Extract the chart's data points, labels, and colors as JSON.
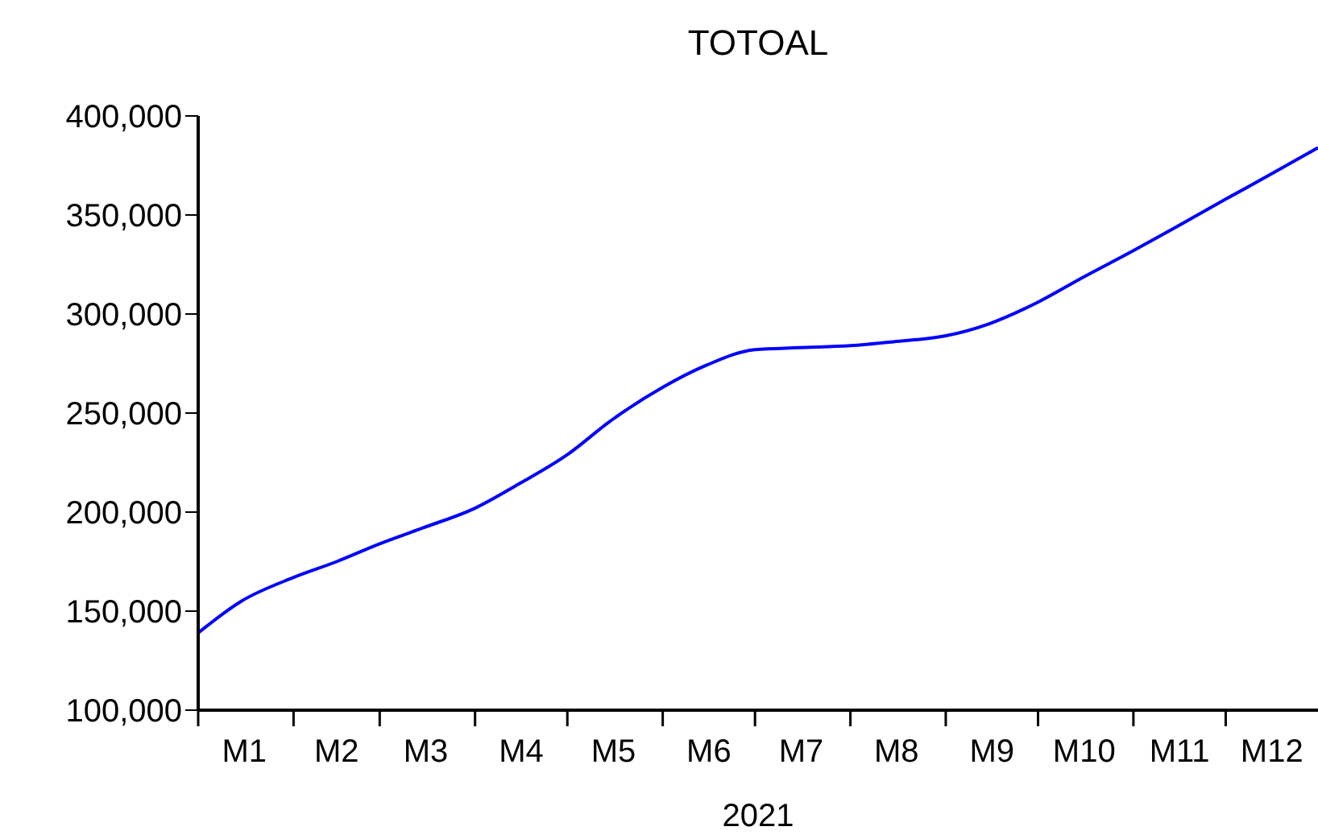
{
  "chart_data": {
    "type": "line",
    "title": "TOTOAL",
    "xlabel": "2021",
    "x": [
      "2021-01-01",
      "2021-01-15",
      "2021-02-01",
      "2021-02-15",
      "2021-03-01",
      "2021-03-15",
      "2021-04-01",
      "2021-04-15",
      "2021-05-01",
      "2021-05-15",
      "2021-06-01",
      "2021-06-15",
      "2021-07-01",
      "2021-07-15",
      "2021-08-01",
      "2021-08-15",
      "2021-09-01",
      "2021-09-15",
      "2021-10-01",
      "2021-10-15",
      "2021-11-01",
      "2021-11-15",
      "2021-12-01",
      "2021-12-15",
      "2021-12-31"
    ],
    "series": [
      {
        "color": "#0000ff",
        "values": [
          139000,
          155000,
          167000,
          175000,
          184000,
          192000,
          202000,
          214000,
          229000,
          246000,
          263000,
          274000,
          282000,
          283000,
          284000,
          286000,
          289000,
          295000,
          306000,
          318000,
          332000,
          344000,
          358000,
          370000,
          384000
        ]
      }
    ],
    "xlim": [
      "2021-01-01",
      "2021-12-31"
    ],
    "xticks": [
      {
        "value": "2021-01-01",
        "label": null
      },
      {
        "value": "2021-01-16",
        "label": "M1"
      },
      {
        "value": "2021-02-01",
        "label": null
      },
      {
        "value": "2021-02-15",
        "label": "M2"
      },
      {
        "value": "2021-03-01",
        "label": null
      },
      {
        "value": "2021-03-16",
        "label": "M3"
      },
      {
        "value": "2021-04-01",
        "label": null
      },
      {
        "value": "2021-04-16",
        "label": "M4"
      },
      {
        "value": "2021-05-01",
        "label": null
      },
      {
        "value": "2021-05-16",
        "label": "M5"
      },
      {
        "value": "2021-06-01",
        "label": null
      },
      {
        "value": "2021-06-16",
        "label": "M6"
      },
      {
        "value": "2021-07-01",
        "label": null
      },
      {
        "value": "2021-07-16",
        "label": "M7"
      },
      {
        "value": "2021-08-01",
        "label": null
      },
      {
        "value": "2021-08-16",
        "label": "M8"
      },
      {
        "value": "2021-09-01",
        "label": null
      },
      {
        "value": "2021-09-16",
        "label": "M9"
      },
      {
        "value": "2021-10-01",
        "label": null
      },
      {
        "value": "2021-10-16",
        "label": "M10"
      },
      {
        "value": "2021-11-01",
        "label": null
      },
      {
        "value": "2021-11-16",
        "label": "M11"
      },
      {
        "value": "2021-12-01",
        "label": null
      },
      {
        "value": "2021-12-16",
        "label": "M12"
      }
    ],
    "ylim": [
      100000,
      400000
    ],
    "yticks": [
      {
        "value": 100000,
        "label": "100,000"
      },
      {
        "value": 150000,
        "label": "150,000"
      },
      {
        "value": 200000,
        "label": "200,000"
      },
      {
        "value": 250000,
        "label": "250,000"
      },
      {
        "value": 300000,
        "label": "300,000"
      },
      {
        "value": 350000,
        "label": "350,000"
      },
      {
        "value": 400000,
        "label": "400,000"
      }
    ],
    "grid": false,
    "legend": false,
    "marker": "none",
    "line_style": "solid"
  }
}
